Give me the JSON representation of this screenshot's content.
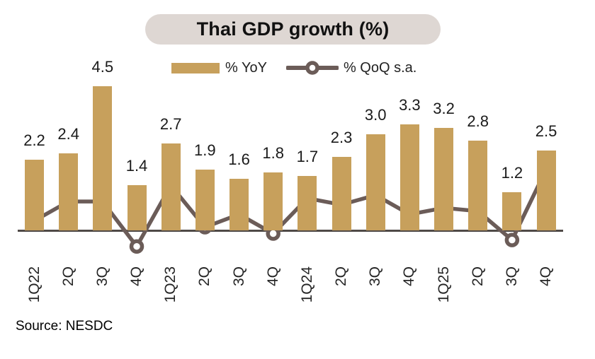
{
  "title": "Thai GDP growth (%)",
  "legend": {
    "items": [
      {
        "label": "% YoY",
        "swatch": "bar"
      },
      {
        "label": "% QoQ s.a.",
        "swatch": "line-marker"
      }
    ]
  },
  "source": "Source: NESDC",
  "colors": {
    "bar": "#C7A05C",
    "line": "#6B5C58",
    "marker_fill": "#FFFFFF",
    "axis": "#4F4A47",
    "title_pill_bg": "#DED7D3",
    "text": "#1A1A1A"
  },
  "chart_data": {
    "type": "bar",
    "title": "Thai GDP growth (%)",
    "categories": [
      "1Q22",
      "2Q",
      "3Q",
      "4Q",
      "1Q23",
      "2Q",
      "3Q",
      "4Q",
      "1Q24",
      "2Q",
      "3Q",
      "4Q",
      "1Q25",
      "2Q",
      "3Q",
      "4Q"
    ],
    "series": [
      {
        "name": "% YoY",
        "type": "bar",
        "values": [
          2.2,
          2.4,
          4.5,
          1.4,
          2.7,
          1.9,
          1.6,
          1.8,
          1.7,
          2.3,
          3.0,
          3.3,
          3.2,
          2.8,
          1.2,
          2.5
        ],
        "data_labels": [
          "2.2",
          "2.4",
          "4.5",
          "1.4",
          "2.7",
          "1.9",
          "1.6",
          "1.8",
          "1.7",
          "2.3",
          "3.0",
          "3.3",
          "3.2",
          "2.8",
          "1.2",
          "2.5"
        ]
      },
      {
        "name": "% QoQ s.a.",
        "type": "line",
        "values": [
          0.3,
          0.9,
          0.9,
          -0.5,
          1.4,
          0.1,
          0.5,
          -0.1,
          1.0,
          0.8,
          1.1,
          0.5,
          0.7,
          0.6,
          -0.3,
          1.9
        ]
      }
    ],
    "xlabel": "",
    "ylabel": "",
    "ylim": [
      -1,
      5
    ],
    "grid": false,
    "y_axis_shown": false,
    "legend_position": "top-center",
    "annotations": "bar values labeled above each bar; x labels rotated 90°"
  }
}
